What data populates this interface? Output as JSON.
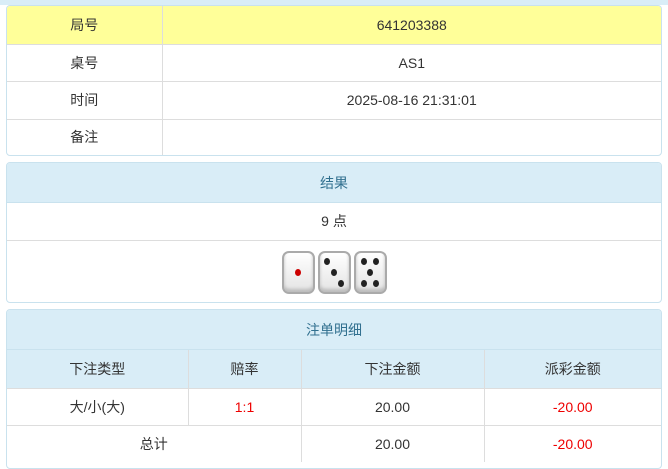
{
  "info": {
    "rows": [
      {
        "label": "局号",
        "value": "641203388"
      },
      {
        "label": "桌号",
        "value": "AS1"
      },
      {
        "label": "时间",
        "value": "2025-08-16 21:31:01"
      },
      {
        "label": "备注",
        "value": ""
      }
    ]
  },
  "result": {
    "title": "结果",
    "points": "9 点",
    "dice": [
      1,
      3,
      5
    ]
  },
  "bets": {
    "title": "注单明细",
    "columns": [
      "下注类型",
      "赔率",
      "下注金额",
      "派彩金额"
    ],
    "rows": [
      {
        "type": "大/小(大)",
        "odds": "1:1",
        "amount": "20.00",
        "payout": "-20.00"
      }
    ],
    "total": {
      "label": "总计",
      "amount": "20.00",
      "payout": "-20.00"
    }
  },
  "colors": {
    "header_bg": "#d9edf7",
    "highlight": "#ffff99",
    "negative": "#e00000"
  }
}
